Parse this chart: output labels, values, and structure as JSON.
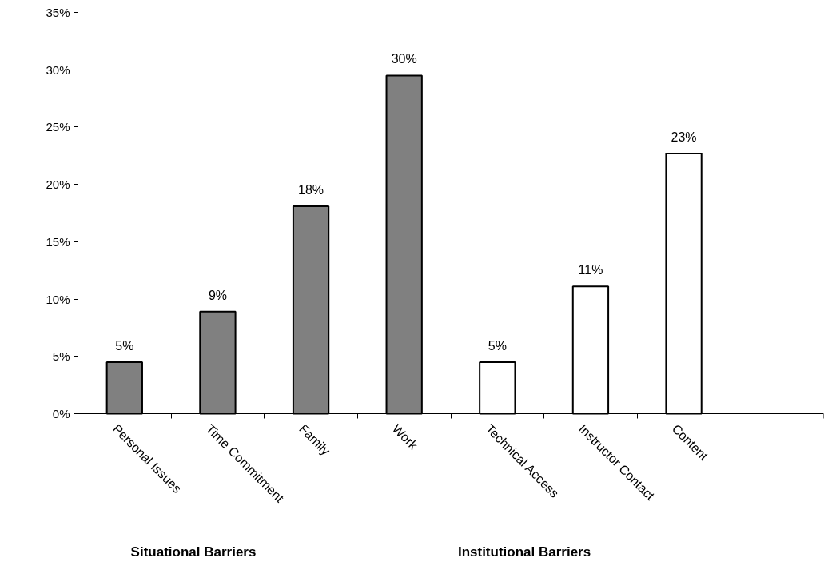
{
  "chart_data": {
    "type": "bar",
    "categories": [
      "Personal Issues",
      "Time Commitment",
      "Family",
      "Work",
      "Technical Access",
      "Instructor Contact",
      "Content",
      null
    ],
    "values": [
      4.5,
      8.9,
      18.1,
      29.5,
      4.5,
      11.1,
      22.7,
      null
    ],
    "colors": [
      "#808080",
      "#808080",
      "#808080",
      "#808080",
      "#ffffff",
      "#ffffff",
      "#ffffff",
      "#ffffff"
    ],
    "value_labels": [
      "5%",
      "9%",
      "18%",
      "30%",
      "5%",
      "11%",
      "23%",
      null
    ],
    "ylim": [
      0,
      35
    ],
    "yticks": [
      {
        "value": 0,
        "label": "0%"
      },
      {
        "value": 5,
        "label": "5%"
      },
      {
        "value": 10,
        "label": "10%"
      },
      {
        "value": 15,
        "label": "15%"
      },
      {
        "value": 20,
        "label": "20%"
      },
      {
        "value": 25,
        "label": "25%"
      },
      {
        "value": 30,
        "label": "30%"
      },
      {
        "value": 35,
        "label": "35%"
      }
    ],
    "annotations": [
      "Situational    Barriers",
      "Institutional    Barriers"
    ],
    "grid": false
  }
}
